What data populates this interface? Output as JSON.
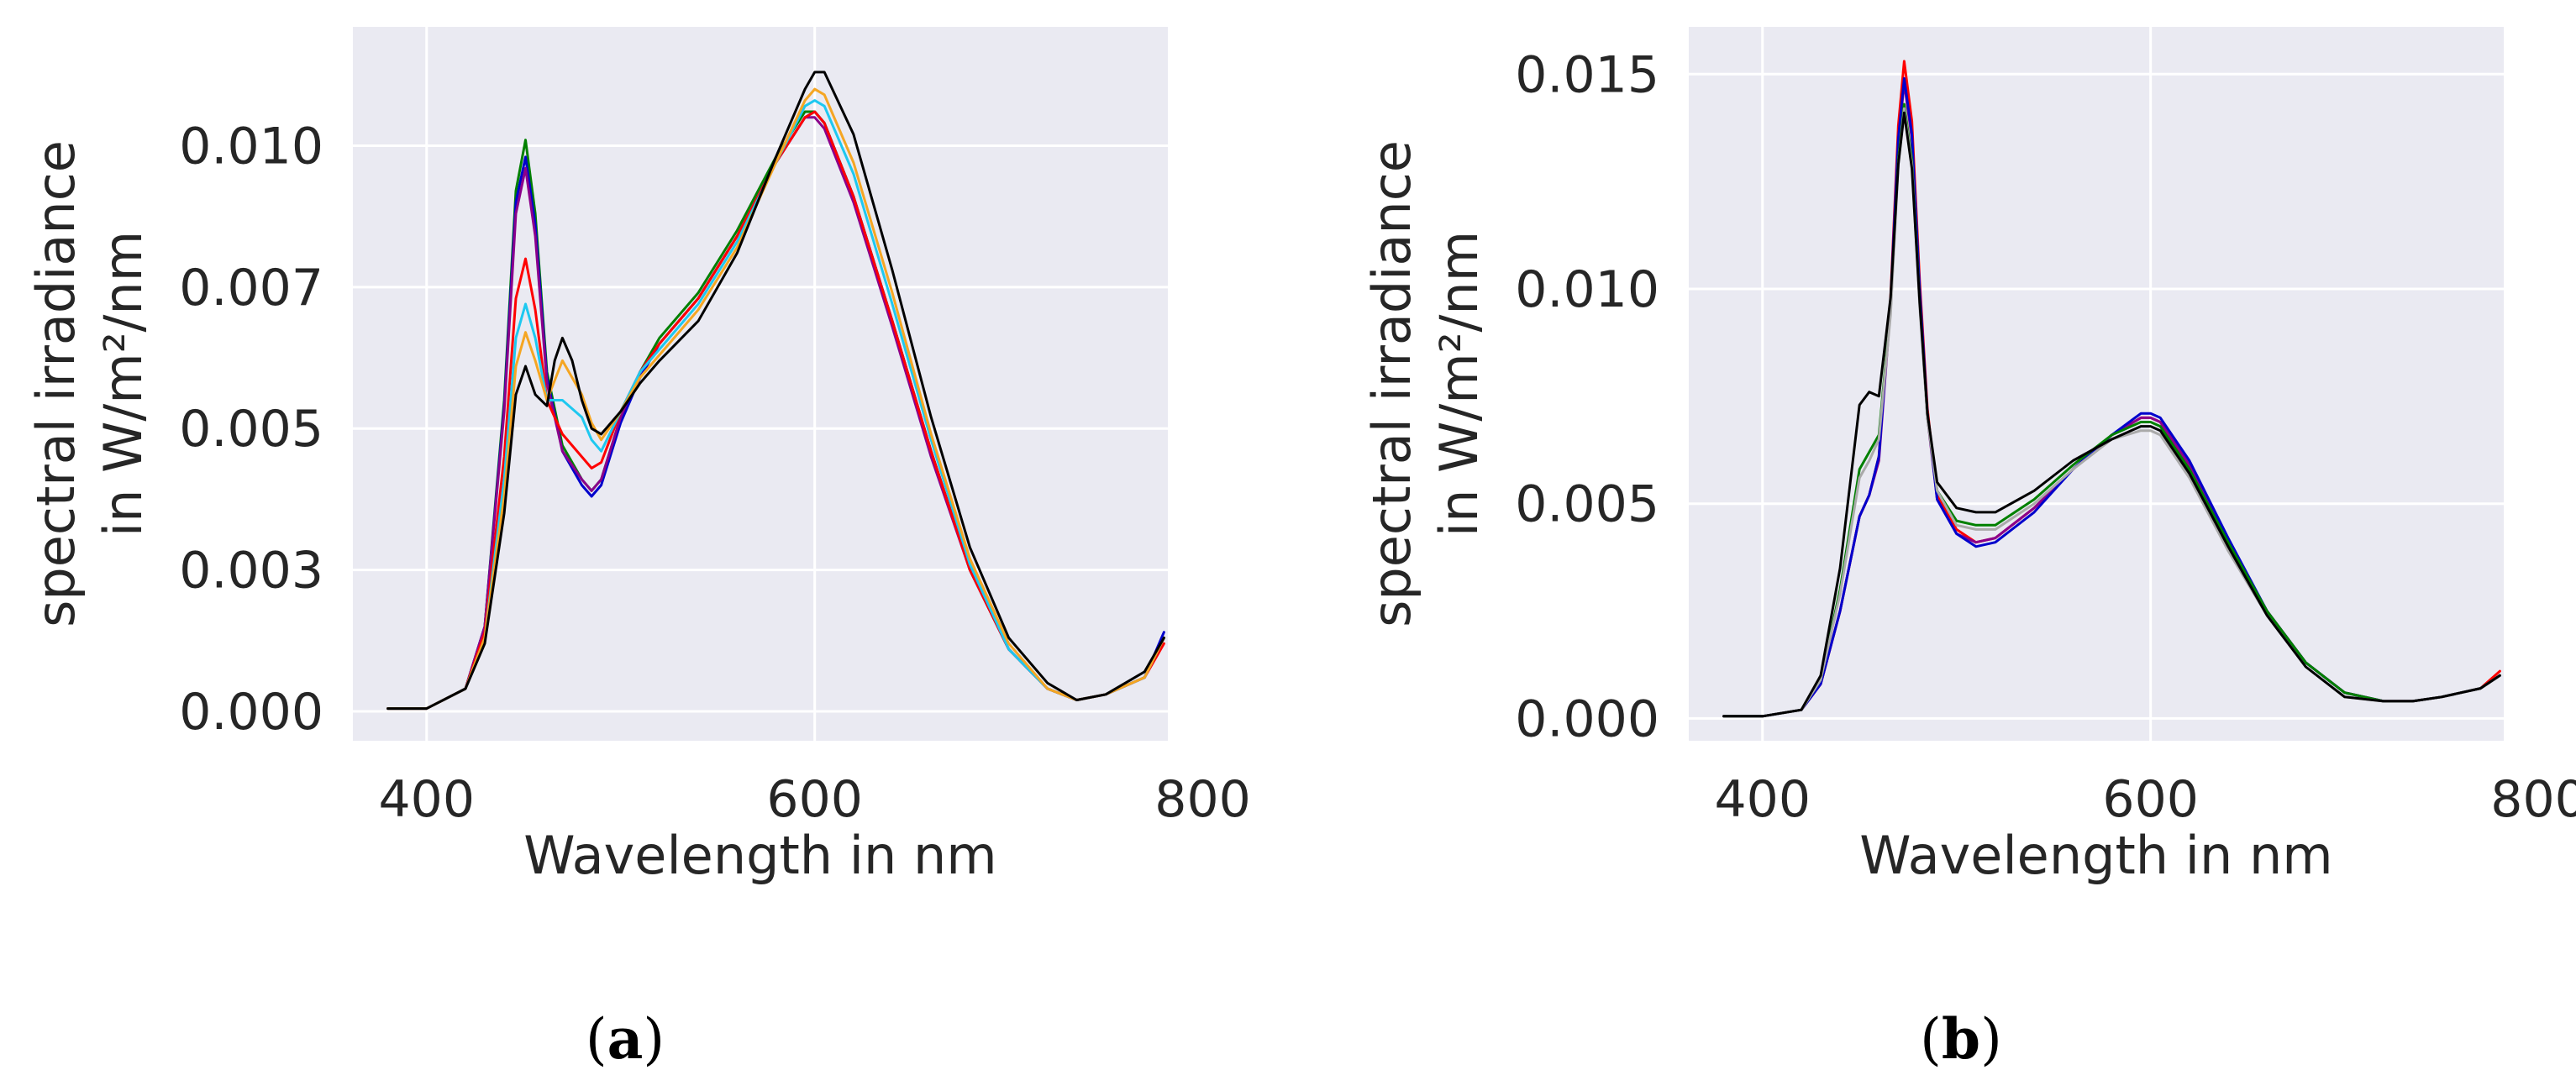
{
  "figure": {
    "captions": [
      {
        "open": "(",
        "letter": "a",
        "close": ")"
      },
      {
        "open": "(",
        "letter": "b",
        "close": ")"
      }
    ]
  },
  "chart_data": [
    {
      "type": "line",
      "panel": "a",
      "xlabel": "Wavelength in nm",
      "ylabel_lines": [
        "spectral irradiance",
        "in W/m²/nm"
      ],
      "xlim": [
        362,
        782
      ],
      "ylim": [
        -0.00052,
        0.0121
      ],
      "xticks": [
        400,
        600,
        800
      ],
      "xtick_labels": [
        "400",
        "600",
        "800"
      ],
      "yticks": [
        0.0,
        0.0025,
        0.005,
        0.0075,
        0.01
      ],
      "ytick_labels": [
        "0.000",
        "0.003",
        "0.005",
        "0.007",
        "0.010"
      ],
      "grid": true,
      "background": "#eaeaf2",
      "series": [
        {
          "name": "s1",
          "color": "#008000",
          "width": 3,
          "x": [
            380,
            400,
            420,
            430,
            440,
            446,
            451,
            456,
            462,
            470,
            480,
            485,
            490,
            500,
            510,
            520,
            540,
            560,
            580,
            595,
            600,
            605,
            620,
            640,
            660,
            680,
            700,
            720,
            735,
            750,
            770,
            780
          ],
          "y": [
            5e-05,
            5e-05,
            0.0004,
            0.0015,
            0.0055,
            0.0092,
            0.0101,
            0.0088,
            0.006,
            0.0047,
            0.0041,
            0.0039,
            0.0041,
            0.0052,
            0.006,
            0.0066,
            0.0074,
            0.0085,
            0.0098,
            0.0106,
            0.0106,
            0.0104,
            0.0091,
            0.0069,
            0.0046,
            0.0025,
            0.0011,
            0.0004,
            0.0002,
            0.0003,
            0.0006,
            0.0013
          ]
        },
        {
          "name": "s2",
          "color": "#0000cc",
          "width": 3,
          "x": [
            380,
            400,
            420,
            430,
            440,
            446,
            451,
            456,
            462,
            470,
            480,
            485,
            490,
            500,
            510,
            520,
            540,
            560,
            580,
            595,
            600,
            605,
            620,
            640,
            660,
            680,
            700,
            720,
            735,
            750,
            770,
            780
          ],
          "y": [
            5e-05,
            5e-05,
            0.0004,
            0.0015,
            0.0054,
            0.009,
            0.0098,
            0.0086,
            0.0059,
            0.0046,
            0.004,
            0.0038,
            0.004,
            0.0051,
            0.0059,
            0.0065,
            0.0073,
            0.0084,
            0.0097,
            0.0105,
            0.0106,
            0.0104,
            0.0091,
            0.0069,
            0.0046,
            0.0025,
            0.0011,
            0.0004,
            0.0002,
            0.0003,
            0.0006,
            0.0014
          ]
        },
        {
          "name": "s3",
          "color": "#8b008b",
          "width": 3,
          "x": [
            380,
            400,
            420,
            430,
            440,
            446,
            451,
            456,
            462,
            470,
            480,
            485,
            490,
            500,
            510,
            520,
            540,
            560,
            580,
            595,
            600,
            605,
            620,
            640,
            660,
            680,
            700,
            720,
            735,
            750,
            770,
            780
          ],
          "y": [
            5e-05,
            5e-05,
            0.0004,
            0.0015,
            0.0053,
            0.0088,
            0.0096,
            0.0084,
            0.0058,
            0.0046,
            0.0041,
            0.0039,
            0.0041,
            0.0052,
            0.006,
            0.0065,
            0.0073,
            0.0084,
            0.0097,
            0.0105,
            0.0105,
            0.0103,
            0.009,
            0.0068,
            0.0045,
            0.0025,
            0.0011,
            0.0004,
            0.0002,
            0.0003,
            0.0006,
            0.0013
          ]
        },
        {
          "name": "s4",
          "color": "#ff0000",
          "width": 3,
          "x": [
            380,
            400,
            420,
            430,
            440,
            446,
            451,
            456,
            462,
            470,
            480,
            485,
            490,
            500,
            510,
            520,
            540,
            560,
            580,
            595,
            600,
            605,
            620,
            640,
            660,
            680,
            700,
            720,
            735,
            750,
            770,
            780
          ],
          "y": [
            5e-05,
            5e-05,
            0.0004,
            0.0014,
            0.0045,
            0.0073,
            0.008,
            0.0071,
            0.0055,
            0.0049,
            0.0045,
            0.0043,
            0.0044,
            0.0053,
            0.006,
            0.0065,
            0.0073,
            0.0084,
            0.0097,
            0.0105,
            0.0106,
            0.0104,
            0.0091,
            0.0069,
            0.0046,
            0.0025,
            0.0011,
            0.0004,
            0.0002,
            0.0003,
            0.0006,
            0.0012
          ]
        },
        {
          "name": "s5",
          "color": "#1ec8f0",
          "width": 3,
          "x": [
            380,
            400,
            420,
            430,
            440,
            446,
            451,
            456,
            462,
            470,
            480,
            485,
            490,
            500,
            510,
            520,
            540,
            560,
            580,
            595,
            600,
            605,
            620,
            640,
            660,
            680,
            700,
            720,
            735,
            750,
            770,
            780
          ],
          "y": [
            5e-05,
            5e-05,
            0.0004,
            0.0013,
            0.0041,
            0.0066,
            0.0072,
            0.0066,
            0.0055,
            0.0055,
            0.0052,
            0.0048,
            0.0046,
            0.0053,
            0.006,
            0.0064,
            0.0072,
            0.0083,
            0.0097,
            0.0107,
            0.0108,
            0.0107,
            0.0095,
            0.0072,
            0.0048,
            0.0026,
            0.0011,
            0.0004,
            0.0002,
            0.0003,
            0.0006,
            0.0013
          ]
        },
        {
          "name": "s6",
          "color": "#f5a623",
          "width": 3,
          "x": [
            380,
            400,
            420,
            430,
            440,
            446,
            451,
            456,
            462,
            470,
            480,
            485,
            490,
            500,
            510,
            520,
            540,
            560,
            580,
            595,
            600,
            605,
            620,
            640,
            660,
            680,
            700,
            720,
            735,
            750,
            770,
            780
          ],
          "y": [
            5e-05,
            5e-05,
            0.0004,
            0.0013,
            0.0038,
            0.0061,
            0.0067,
            0.0062,
            0.0055,
            0.0062,
            0.0056,
            0.0051,
            0.0048,
            0.0053,
            0.0059,
            0.0063,
            0.0071,
            0.0082,
            0.0097,
            0.0108,
            0.011,
            0.0109,
            0.0097,
            0.0074,
            0.0049,
            0.0027,
            0.0012,
            0.0004,
            0.0002,
            0.0003,
            0.0006,
            0.0013
          ]
        },
        {
          "name": "s7",
          "color": "#000000",
          "width": 3,
          "x": [
            380,
            400,
            420,
            430,
            440,
            446,
            451,
            456,
            462,
            466,
            470,
            475,
            480,
            485,
            490,
            500,
            510,
            520,
            540,
            560,
            580,
            595,
            600,
            605,
            620,
            640,
            660,
            680,
            700,
            720,
            735,
            750,
            770,
            780
          ],
          "y": [
            5e-05,
            5e-05,
            0.0004,
            0.0012,
            0.0035,
            0.0056,
            0.0061,
            0.0056,
            0.0054,
            0.0062,
            0.0066,
            0.0062,
            0.0055,
            0.005,
            0.0049,
            0.0053,
            0.0058,
            0.0062,
            0.0069,
            0.0081,
            0.0098,
            0.011,
            0.0113,
            0.0113,
            0.0102,
            0.0078,
            0.0052,
            0.0029,
            0.0013,
            0.0005,
            0.0002,
            0.0003,
            0.0007,
            0.0013
          ]
        }
      ]
    },
    {
      "type": "line",
      "panel": "b",
      "xlabel": "Wavelength in nm",
      "ylabel_lines": [
        "spectral irradiance",
        "in W/m²/nm"
      ],
      "xlim": [
        362,
        782
      ],
      "ylim": [
        -0.00052,
        0.0161
      ],
      "xticks": [
        400,
        600,
        800
      ],
      "xtick_labels": [
        "400",
        "600",
        "800"
      ],
      "yticks": [
        0.0,
        0.005,
        0.01,
        0.015
      ],
      "ytick_labels": [
        "0.000",
        "0.005",
        "0.010",
        "0.015"
      ],
      "grid": true,
      "background": "#eaeaf2",
      "series": [
        {
          "name": "s1",
          "color": "#ff0000",
          "width": 3,
          "x": [
            380,
            400,
            420,
            430,
            440,
            450,
            455,
            460,
            466,
            470,
            473,
            477,
            481,
            485,
            490,
            500,
            510,
            520,
            540,
            560,
            580,
            595,
            600,
            605,
            620,
            640,
            660,
            680,
            700,
            720,
            735,
            750,
            770,
            780
          ],
          "y": [
            5e-05,
            5e-05,
            0.0002,
            0.0008,
            0.0025,
            0.0047,
            0.0052,
            0.0061,
            0.0098,
            0.0138,
            0.0153,
            0.0139,
            0.0102,
            0.0072,
            0.0052,
            0.0044,
            0.0041,
            0.0042,
            0.0049,
            0.0058,
            0.0066,
            0.007,
            0.007,
            0.0069,
            0.0059,
            0.0041,
            0.0025,
            0.0013,
            0.0006,
            0.0004,
            0.0004,
            0.0005,
            0.0007,
            0.0011
          ]
        },
        {
          "name": "s2",
          "color": "#8b008b",
          "width": 3,
          "x": [
            380,
            400,
            420,
            430,
            440,
            450,
            455,
            460,
            466,
            470,
            473,
            477,
            481,
            485,
            490,
            500,
            510,
            520,
            540,
            560,
            580,
            595,
            600,
            605,
            620,
            640,
            660,
            680,
            700,
            720,
            735,
            750,
            770,
            780
          ],
          "y": [
            5e-05,
            5e-05,
            0.0002,
            0.0008,
            0.0025,
            0.0047,
            0.0052,
            0.006,
            0.0096,
            0.0134,
            0.0148,
            0.0135,
            0.0099,
            0.007,
            0.0051,
            0.0043,
            0.0041,
            0.0042,
            0.0049,
            0.0058,
            0.0066,
            0.007,
            0.007,
            0.0069,
            0.0059,
            0.0041,
            0.0025,
            0.0013,
            0.0006,
            0.0004,
            0.0004,
            0.0005,
            0.0007,
            0.001
          ]
        },
        {
          "name": "s3",
          "color": "#0000cc",
          "width": 3,
          "x": [
            380,
            400,
            420,
            430,
            440,
            450,
            455,
            460,
            466,
            470,
            473,
            477,
            481,
            485,
            490,
            500,
            510,
            520,
            540,
            560,
            580,
            595,
            600,
            605,
            620,
            640,
            660,
            680,
            700,
            720,
            735,
            750,
            770,
            780
          ],
          "y": [
            5e-05,
            5e-05,
            0.0002,
            0.0008,
            0.0025,
            0.0047,
            0.0052,
            0.0061,
            0.0097,
            0.0135,
            0.0149,
            0.0136,
            0.01,
            0.0071,
            0.0051,
            0.0043,
            0.004,
            0.0041,
            0.0048,
            0.0058,
            0.0066,
            0.0071,
            0.0071,
            0.007,
            0.006,
            0.0042,
            0.0025,
            0.0013,
            0.0006,
            0.0004,
            0.0004,
            0.0005,
            0.0007,
            0.001
          ]
        },
        {
          "name": "s4",
          "color": "#008000",
          "width": 3,
          "x": [
            380,
            400,
            420,
            430,
            440,
            450,
            455,
            460,
            466,
            470,
            473,
            477,
            481,
            485,
            490,
            500,
            510,
            520,
            540,
            560,
            580,
            595,
            600,
            605,
            620,
            640,
            660,
            680,
            700,
            720,
            735,
            750,
            770,
            780
          ],
          "y": [
            5e-05,
            5e-05,
            0.0002,
            0.0009,
            0.003,
            0.0058,
            0.0062,
            0.0066,
            0.0095,
            0.013,
            0.0143,
            0.013,
            0.0097,
            0.007,
            0.0053,
            0.0046,
            0.0045,
            0.0045,
            0.0051,
            0.0059,
            0.0066,
            0.0069,
            0.0069,
            0.0068,
            0.0058,
            0.0041,
            0.0025,
            0.0013,
            0.0006,
            0.0004,
            0.0004,
            0.0005,
            0.0007,
            0.001
          ]
        },
        {
          "name": "s5",
          "color": "#aaaaaa",
          "width": 3,
          "x": [
            380,
            400,
            420,
            430,
            440,
            450,
            455,
            460,
            466,
            470,
            473,
            477,
            481,
            485,
            490,
            500,
            510,
            520,
            540,
            560,
            580,
            595,
            600,
            605,
            620,
            640,
            660,
            680,
            700,
            720,
            735,
            750,
            770,
            780
          ],
          "y": [
            5e-05,
            5e-05,
            0.0002,
            0.0009,
            0.0029,
            0.0056,
            0.006,
            0.0065,
            0.0094,
            0.0129,
            0.0142,
            0.0129,
            0.0096,
            0.007,
            0.0053,
            0.0045,
            0.0044,
            0.0044,
            0.005,
            0.0058,
            0.0065,
            0.0067,
            0.0067,
            0.0066,
            0.0056,
            0.0039,
            0.0024,
            0.0012,
            0.0005,
            0.0004,
            0.0004,
            0.0005,
            0.0007,
            0.001
          ]
        },
        {
          "name": "s6",
          "color": "#000000",
          "width": 3,
          "x": [
            380,
            400,
            420,
            430,
            440,
            450,
            455,
            460,
            466,
            470,
            473,
            477,
            481,
            485,
            490,
            500,
            510,
            520,
            540,
            560,
            580,
            595,
            600,
            605,
            620,
            640,
            660,
            680,
            700,
            720,
            735,
            750,
            770,
            780
          ],
          "y": [
            5e-05,
            5e-05,
            0.0002,
            0.001,
            0.0035,
            0.0073,
            0.0076,
            0.0075,
            0.0098,
            0.0129,
            0.0141,
            0.0128,
            0.0097,
            0.0071,
            0.0055,
            0.0049,
            0.0048,
            0.0048,
            0.0053,
            0.006,
            0.0065,
            0.0068,
            0.0068,
            0.0067,
            0.0057,
            0.004,
            0.0024,
            0.0012,
            0.0005,
            0.0004,
            0.0004,
            0.0005,
            0.0007,
            0.001
          ]
        }
      ]
    }
  ]
}
